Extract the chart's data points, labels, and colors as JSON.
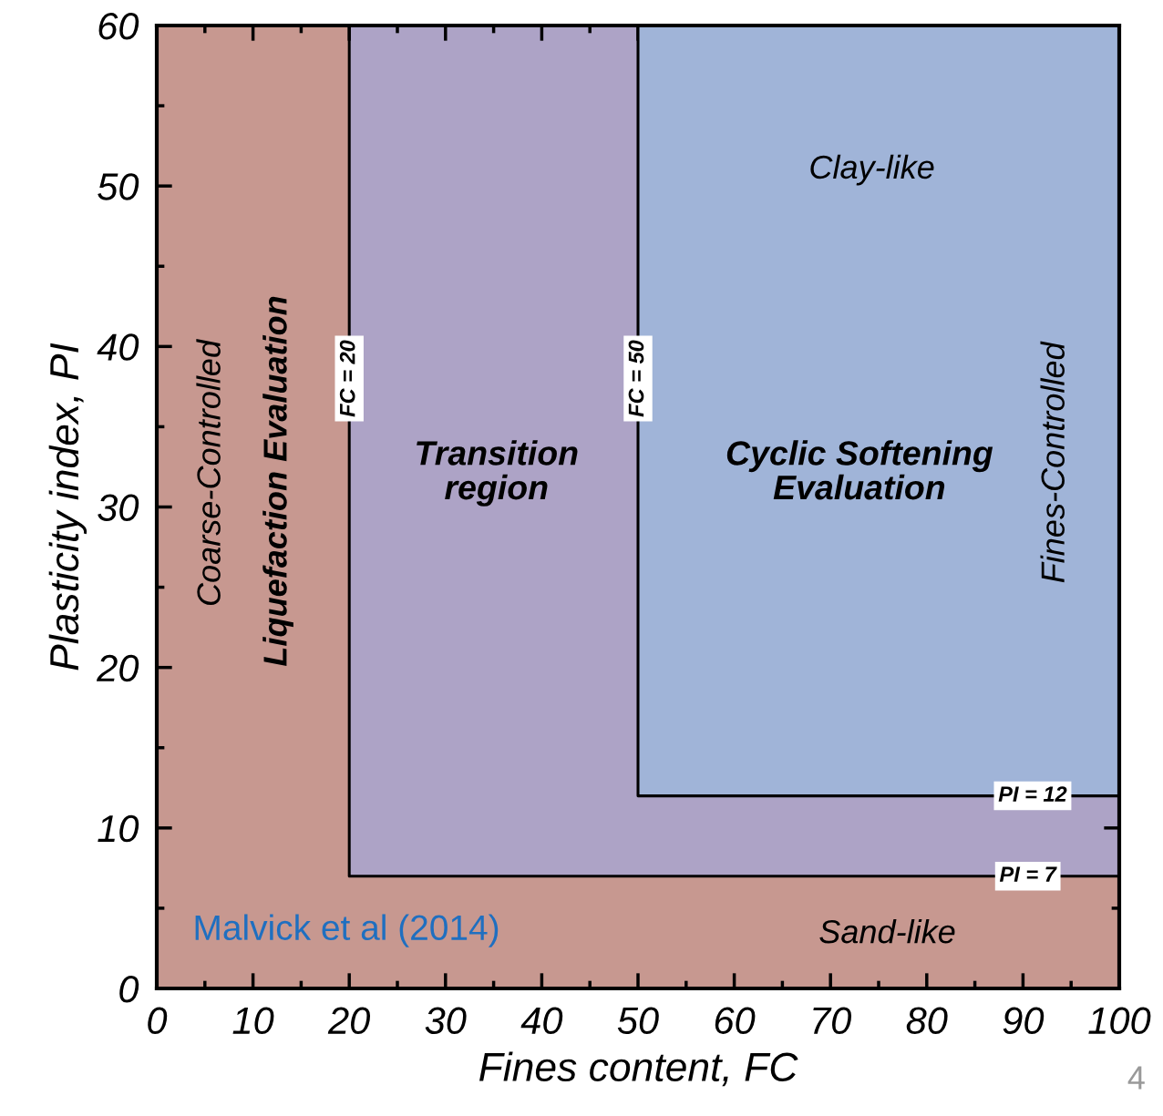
{
  "chart_data": {
    "type": "area",
    "xlabel": "Fines content, FC",
    "ylabel": "Plasticity index, PI",
    "xlim": [
      0,
      100
    ],
    "ylim": [
      0,
      60
    ],
    "xticks": [
      0,
      10,
      20,
      30,
      40,
      50,
      60,
      70,
      80,
      90,
      100
    ],
    "yticks": [
      0,
      10,
      20,
      30,
      40,
      50,
      60
    ],
    "grid": false,
    "bands": [
      {
        "axis": "y",
        "from": 0,
        "to": 60,
        "color": "#c79890"
      }
    ],
    "series": [
      {
        "x": [
          20,
          20,
          100,
          100
        ],
        "values": [
          60,
          7,
          7,
          60
        ],
        "color": "#ada3c6"
      },
      {
        "x": [
          50,
          50,
          100,
          100
        ],
        "values": [
          60,
          12,
          12,
          60
        ],
        "color": "#a0b4d8"
      }
    ],
    "annotations": [
      "Coarse-Controlled",
      "Liquefaction Evaluation",
      {
        "text": "FC = 20",
        "x": 20,
        "y": 38
      },
      "Transition\nregion",
      {
        "text": "FC = 50",
        "x": 50,
        "y": 38
      },
      "Clay-like",
      "Cyclic Softening\nEvaluation",
      "Fines-Controlled",
      {
        "text": "PI = 12",
        "x": 91,
        "y": 12
      },
      {
        "text": "PI = 7",
        "x": 90.5,
        "y": 7
      },
      "Sand-like",
      "Malvick et al (2014)",
      "4"
    ]
  }
}
